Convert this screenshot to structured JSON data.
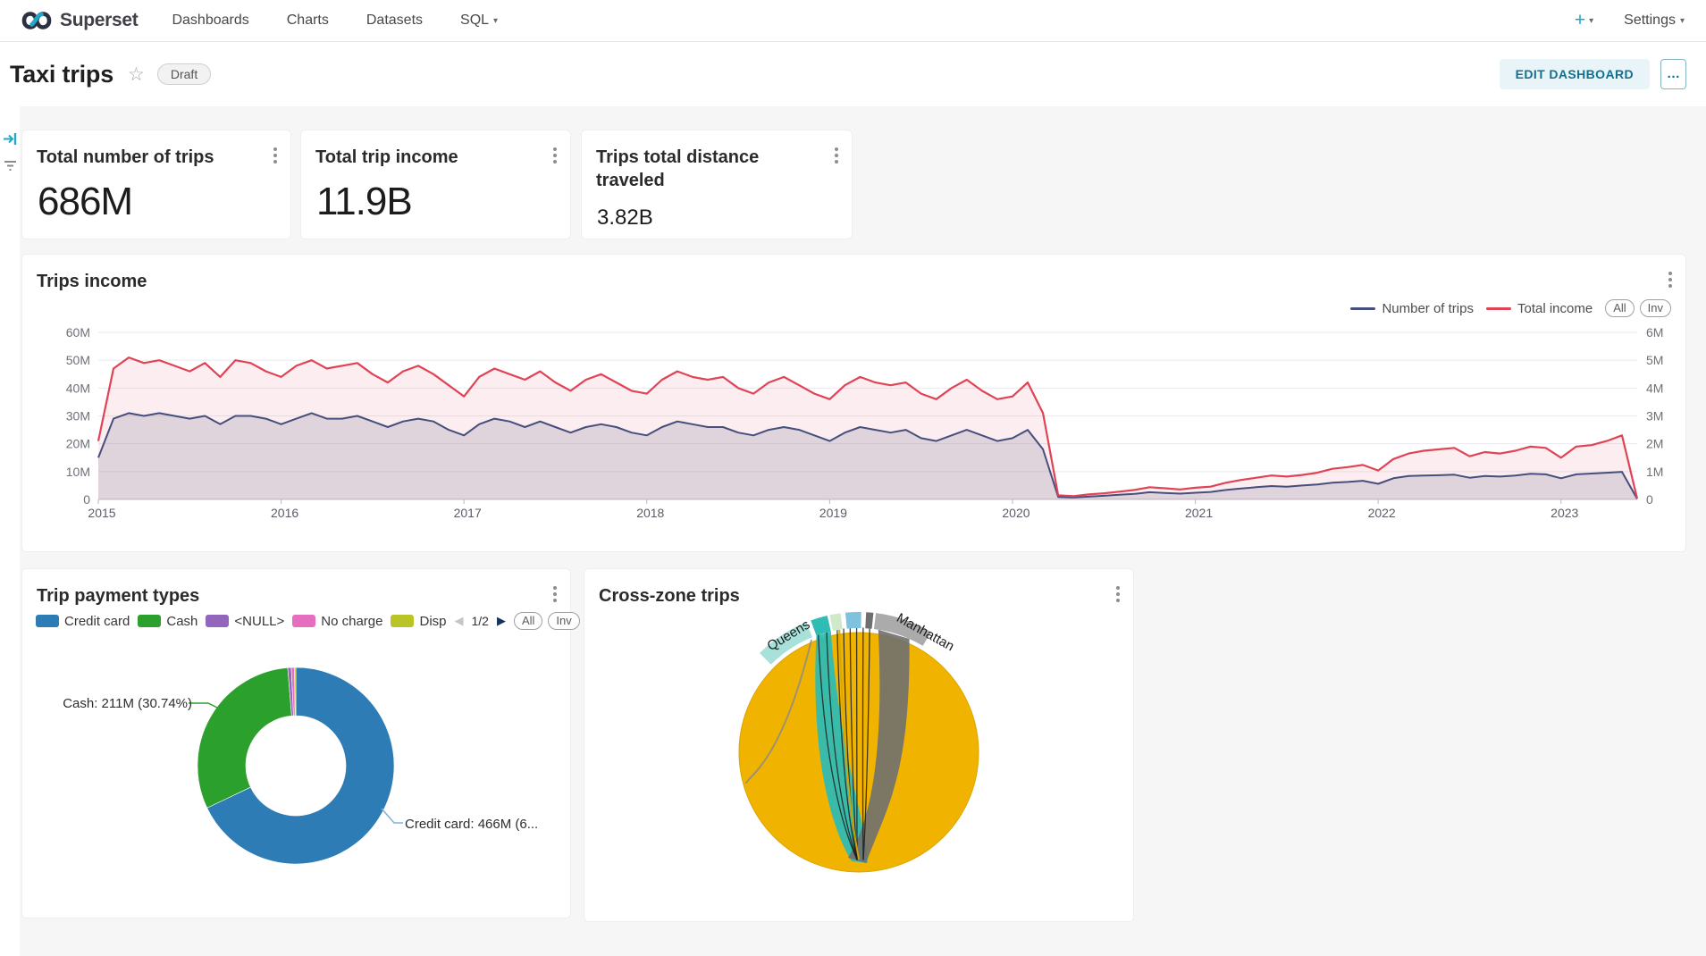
{
  "nav": {
    "brand": "Superset",
    "items": [
      {
        "label": "Dashboards"
      },
      {
        "label": "Charts"
      },
      {
        "label": "Datasets"
      },
      {
        "label": "SQL",
        "caret": "▾"
      }
    ],
    "plus_label": "+",
    "plus_caret": "▾",
    "settings_label": "Settings",
    "settings_caret": "▾"
  },
  "header": {
    "title": "Taxi trips",
    "status_badge": "Draft",
    "edit_button": "EDIT DASHBOARD",
    "more_button": "…"
  },
  "kpis": [
    {
      "title": "Total number of trips",
      "value": "686M"
    },
    {
      "title": "Total trip income",
      "value": "11.9B"
    },
    {
      "title": "Trips total distance traveled",
      "value": "3.82B"
    }
  ],
  "trips_income": {
    "title": "Trips income",
    "all_label": "All",
    "inv_label": "Inv"
  },
  "payment": {
    "title": "Trip payment types",
    "pagination": "1/2",
    "prev_icon": "◀",
    "next_icon": "▶",
    "all_label": "All",
    "inv_label": "Inv",
    "cash_label": "Cash: 211M (30.74%)",
    "credit_label": "Credit card: 466M (6..."
  },
  "crosszone": {
    "title": "Cross-zone trips"
  },
  "chart_data": [
    {
      "type": "area",
      "title": "Trips income",
      "x_unit": "month",
      "x_start": "2015-01",
      "x_ticks": [
        "2015",
        "2016",
        "2017",
        "2018",
        "2019",
        "2020",
        "2021",
        "2022",
        "2023"
      ],
      "ylim_left": [
        0,
        60000000
      ],
      "ylim_right": [
        0,
        6000000
      ],
      "y_ticks_left": [
        "0",
        "10M",
        "20M",
        "30M",
        "40M",
        "50M",
        "60M"
      ],
      "y_ticks_right": [
        "0",
        "1M",
        "2M",
        "3M",
        "4M",
        "5M",
        "6M"
      ],
      "grid": true,
      "legend_position": "top-right",
      "series": [
        {
          "name": "Number of trips",
          "axis": "right",
          "color": "#454e7c",
          "fill": "rgba(69,78,124,0.16)",
          "unit": "M",
          "values": [
            1.5,
            2.9,
            3.1,
            3.0,
            3.1,
            3.0,
            2.9,
            3.0,
            2.7,
            3.0,
            3.0,
            2.9,
            2.7,
            2.9,
            3.1,
            2.9,
            2.9,
            3.0,
            2.8,
            2.6,
            2.8,
            2.9,
            2.8,
            2.5,
            2.3,
            2.7,
            2.9,
            2.8,
            2.6,
            2.8,
            2.6,
            2.4,
            2.6,
            2.7,
            2.6,
            2.4,
            2.3,
            2.6,
            2.8,
            2.7,
            2.6,
            2.6,
            2.4,
            2.3,
            2.5,
            2.6,
            2.5,
            2.3,
            2.1,
            2.4,
            2.6,
            2.5,
            2.4,
            2.5,
            2.2,
            2.1,
            2.3,
            2.5,
            2.3,
            2.1,
            2.2,
            2.5,
            1.8,
            0.09,
            0.07,
            0.1,
            0.13,
            0.17,
            0.2,
            0.26,
            0.23,
            0.21,
            0.24,
            0.27,
            0.34,
            0.39,
            0.44,
            0.48,
            0.46,
            0.5,
            0.54,
            0.6,
            0.63,
            0.67,
            0.56,
            0.76,
            0.84,
            0.86,
            0.87,
            0.89,
            0.78,
            0.84,
            0.82,
            0.86,
            0.92,
            0.9,
            0.76,
            0.9,
            0.93,
            0.96,
            0.99,
            0.02
          ]
        },
        {
          "name": "Total income",
          "axis": "left",
          "color": "#e04355",
          "fill": "rgba(224,67,85,0.09)",
          "unit": "M",
          "values": [
            21,
            47,
            51,
            49,
            50,
            48,
            46,
            49,
            44,
            50,
            49,
            46,
            44,
            48,
            50,
            47,
            48,
            49,
            45,
            42,
            46,
            48,
            45,
            41,
            37,
            44,
            47,
            45,
            43,
            46,
            42,
            39,
            43,
            45,
            42,
            39,
            38,
            43,
            46,
            44,
            43,
            44,
            40,
            38,
            42,
            44,
            41,
            38,
            36,
            41,
            44,
            42,
            41,
            42,
            38,
            36,
            40,
            43,
            39,
            36,
            37,
            42,
            31,
            1.5,
            1.2,
            1.8,
            2.2,
            2.8,
            3.4,
            4.4,
            4.0,
            3.6,
            4.2,
            4.6,
            6.0,
            7.0,
            7.8,
            8.6,
            8.2,
            8.8,
            9.6,
            11.0,
            11.6,
            12.4,
            10.4,
            14.5,
            16.5,
            17.5,
            18.0,
            18.5,
            15.5,
            17.0,
            16.5,
            17.5,
            19.0,
            18.5,
            15.0,
            19.0,
            19.5,
            21.0,
            23.0,
            0.3
          ]
        }
      ]
    },
    {
      "type": "pie",
      "title": "Trip payment types",
      "donut": true,
      "categories": [
        "Credit card",
        "Cash",
        "<NULL>",
        "No charge",
        "Disp"
      ],
      "values_m": [
        466,
        211,
        4,
        3.5,
        1.5
      ],
      "colors": [
        "#2d7cb5",
        "#2ca02c",
        "#9365bc",
        "#e66ec0",
        "#b9c429"
      ],
      "legend_page": "1/2",
      "callout_labels": [
        "Cash: 211M (30.74%)",
        "Credit card: 466M (6..."
      ]
    },
    {
      "type": "chord",
      "title": "Cross-zone trips",
      "ring_color": "#f8d34f",
      "disc_color": "#f0b400",
      "zone_labels": [
        "Queens",
        "Manhattan"
      ],
      "segments": [
        {
          "start": -45,
          "end": -22,
          "color": "#a8e0da",
          "label": "Queens"
        },
        {
          "start": -20,
          "end": -13,
          "color": "#2fbcb3"
        },
        {
          "start": -12,
          "end": -7.5,
          "color": "#cfe9cb"
        },
        {
          "start": -5.5,
          "end": 1,
          "color": "#7fc2dd"
        },
        {
          "start": 3,
          "end": 6,
          "color": "#6f6f6f"
        },
        {
          "start": 7,
          "end": 31,
          "color": "#ababab",
          "label": "Manhattan"
        }
      ]
    }
  ]
}
